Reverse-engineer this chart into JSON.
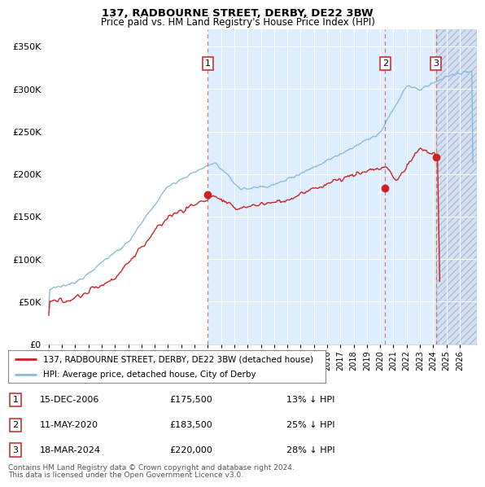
{
  "title1": "137, RADBOURNE STREET, DERBY, DE22 3BW",
  "title2": "Price paid vs. HM Land Registry's House Price Index (HPI)",
  "ylabel_ticks": [
    "£0",
    "£50K",
    "£100K",
    "£150K",
    "£200K",
    "£250K",
    "£300K",
    "£350K"
  ],
  "ytick_values": [
    0,
    50000,
    100000,
    150000,
    200000,
    250000,
    300000,
    350000
  ],
  "ylim": [
    0,
    370000
  ],
  "xlim_start": 1994.7,
  "xlim_end": 2027.3,
  "hpi_color": "#88bbdd",
  "price_color": "#cc2222",
  "background_left": "#ffffff",
  "background_right": "#ddeeff",
  "background_hatch": "#ccddf0",
  "legend_label1": "137, RADBOURNE STREET, DERBY, DE22 3BW (detached house)",
  "legend_label2": "HPI: Average price, detached house, City of Derby",
  "sale_points": [
    {
      "label": "1",
      "year": 2007.0,
      "price": 175500,
      "date": "15-DEC-2006",
      "pct": "13%",
      "dir": "↓"
    },
    {
      "label": "2",
      "year": 2020.38,
      "price": 183500,
      "date": "11-MAY-2020",
      "pct": "25%",
      "dir": "↓"
    },
    {
      "label": "3",
      "year": 2024.21,
      "price": 220000,
      "date": "18-MAR-2024",
      "pct": "28%",
      "dir": "↓"
    }
  ],
  "footer1": "Contains HM Land Registry data © Crown copyright and database right 2024.",
  "footer2": "This data is licensed under the Open Government Licence v3.0.",
  "hatch_start": 2024.21
}
